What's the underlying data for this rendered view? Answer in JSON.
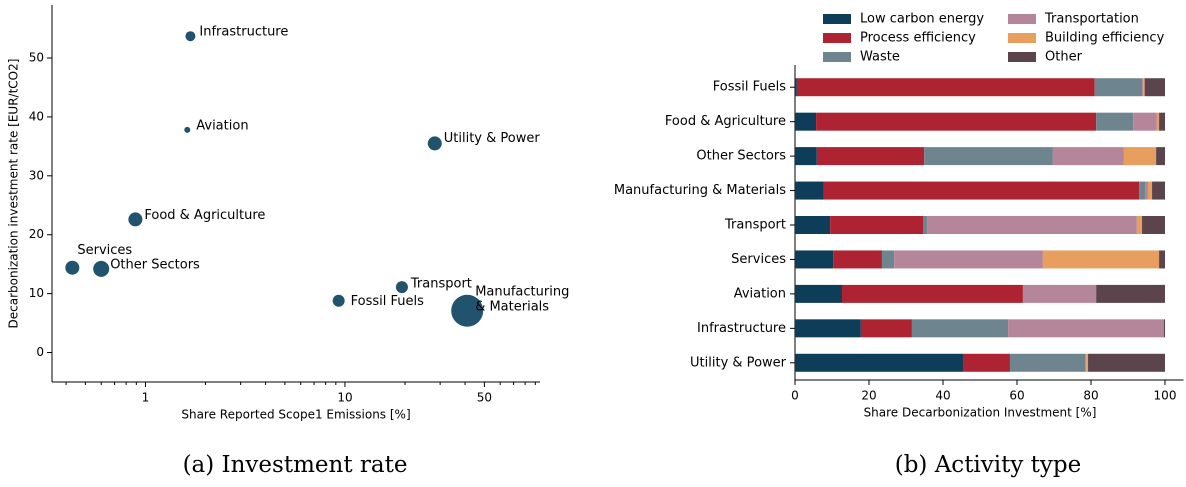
{
  "chart_data": [
    {
      "type": "scatter",
      "caption": "(a) Investment rate",
      "xlabel": "Share Reported Scope1 Emissions [%]",
      "ylabel": "Decarbonization investment rate [EUR/tCO2]",
      "xscale": "log",
      "xlim": [
        0.34,
        95
      ],
      "ylim": [
        -5,
        59
      ],
      "xticks": [
        1,
        10,
        50
      ],
      "minor_xticks": [
        0.4,
        0.5,
        0.6,
        0.7,
        0.8,
        0.9,
        2,
        3,
        4,
        5,
        6,
        7,
        8,
        9,
        20,
        30,
        40,
        60,
        70,
        80,
        90
      ],
      "yticks": [
        0,
        10,
        20,
        30,
        40,
        50
      ],
      "color": "#22536e",
      "categories": [
        "Infrastructure",
        "Aviation",
        "Utility & Power",
        "Food & Agriculture",
        "Services",
        "Other Sectors",
        "Transport",
        "Fossil Fuels",
        "Manufacturing & Materials"
      ],
      "x": [
        1.68,
        1.62,
        28.2,
        0.89,
        0.43,
        0.6,
        19.3,
        9.3,
        41
      ],
      "values": [
        53.7,
        37.8,
        35.5,
        22.6,
        14.4,
        14.2,
        11.1,
        8.8,
        7.1
      ],
      "sizes": [
        5,
        3,
        7,
        7,
        7,
        8,
        6,
        6,
        16
      ]
    },
    {
      "type": "stacked_barh",
      "caption": "(b) Activity type",
      "xlabel": "Share Decarbonization Investment [%]",
      "xlim": [
        0,
        105
      ],
      "xticks": [
        0,
        20,
        40,
        60,
        80,
        100
      ],
      "categories": [
        "Fossil Fuels",
        "Food & Agriculture",
        "Other Sectors",
        "Manufacturing & Materials",
        "Transport",
        "Services",
        "Aviation",
        "Infrastructure",
        "Utility & Power"
      ],
      "series": [
        {
          "name": "Low carbon energy",
          "color": "#0e3d59",
          "values": [
            0.5,
            5.7,
            5.9,
            7.8,
            9.5,
            10.3,
            12.7,
            17.8,
            45.4
          ]
        },
        {
          "name": "Process efficiency",
          "color": "#ad2331",
          "values": [
            80.5,
            75.7,
            29,
            85.2,
            25.1,
            13.2,
            48.9,
            13.8,
            12.7
          ]
        },
        {
          "name": "Waste",
          "color": "#6e8590",
          "values": [
            12.8,
            10,
            34.8,
            1.6,
            1.1,
            3.3,
            0,
            26,
            20.3
          ]
        },
        {
          "name": "Transportation",
          "color": "#b5869a",
          "values": [
            0.3,
            6.4,
            19.2,
            0.8,
            56.7,
            40.2,
            19.8,
            42.1,
            0.3
          ]
        },
        {
          "name": "Building efficiency",
          "color": "#e89e5e",
          "values": [
            0.4,
            0.6,
            8.7,
            1.1,
            1.4,
            31.4,
            0,
            0,
            0.5
          ]
        },
        {
          "name": "Other",
          "color": "#5b444c",
          "values": [
            5.5,
            1.6,
            2.4,
            3.5,
            6.2,
            1.6,
            18.6,
            0.3,
            20.8
          ]
        }
      ]
    }
  ]
}
